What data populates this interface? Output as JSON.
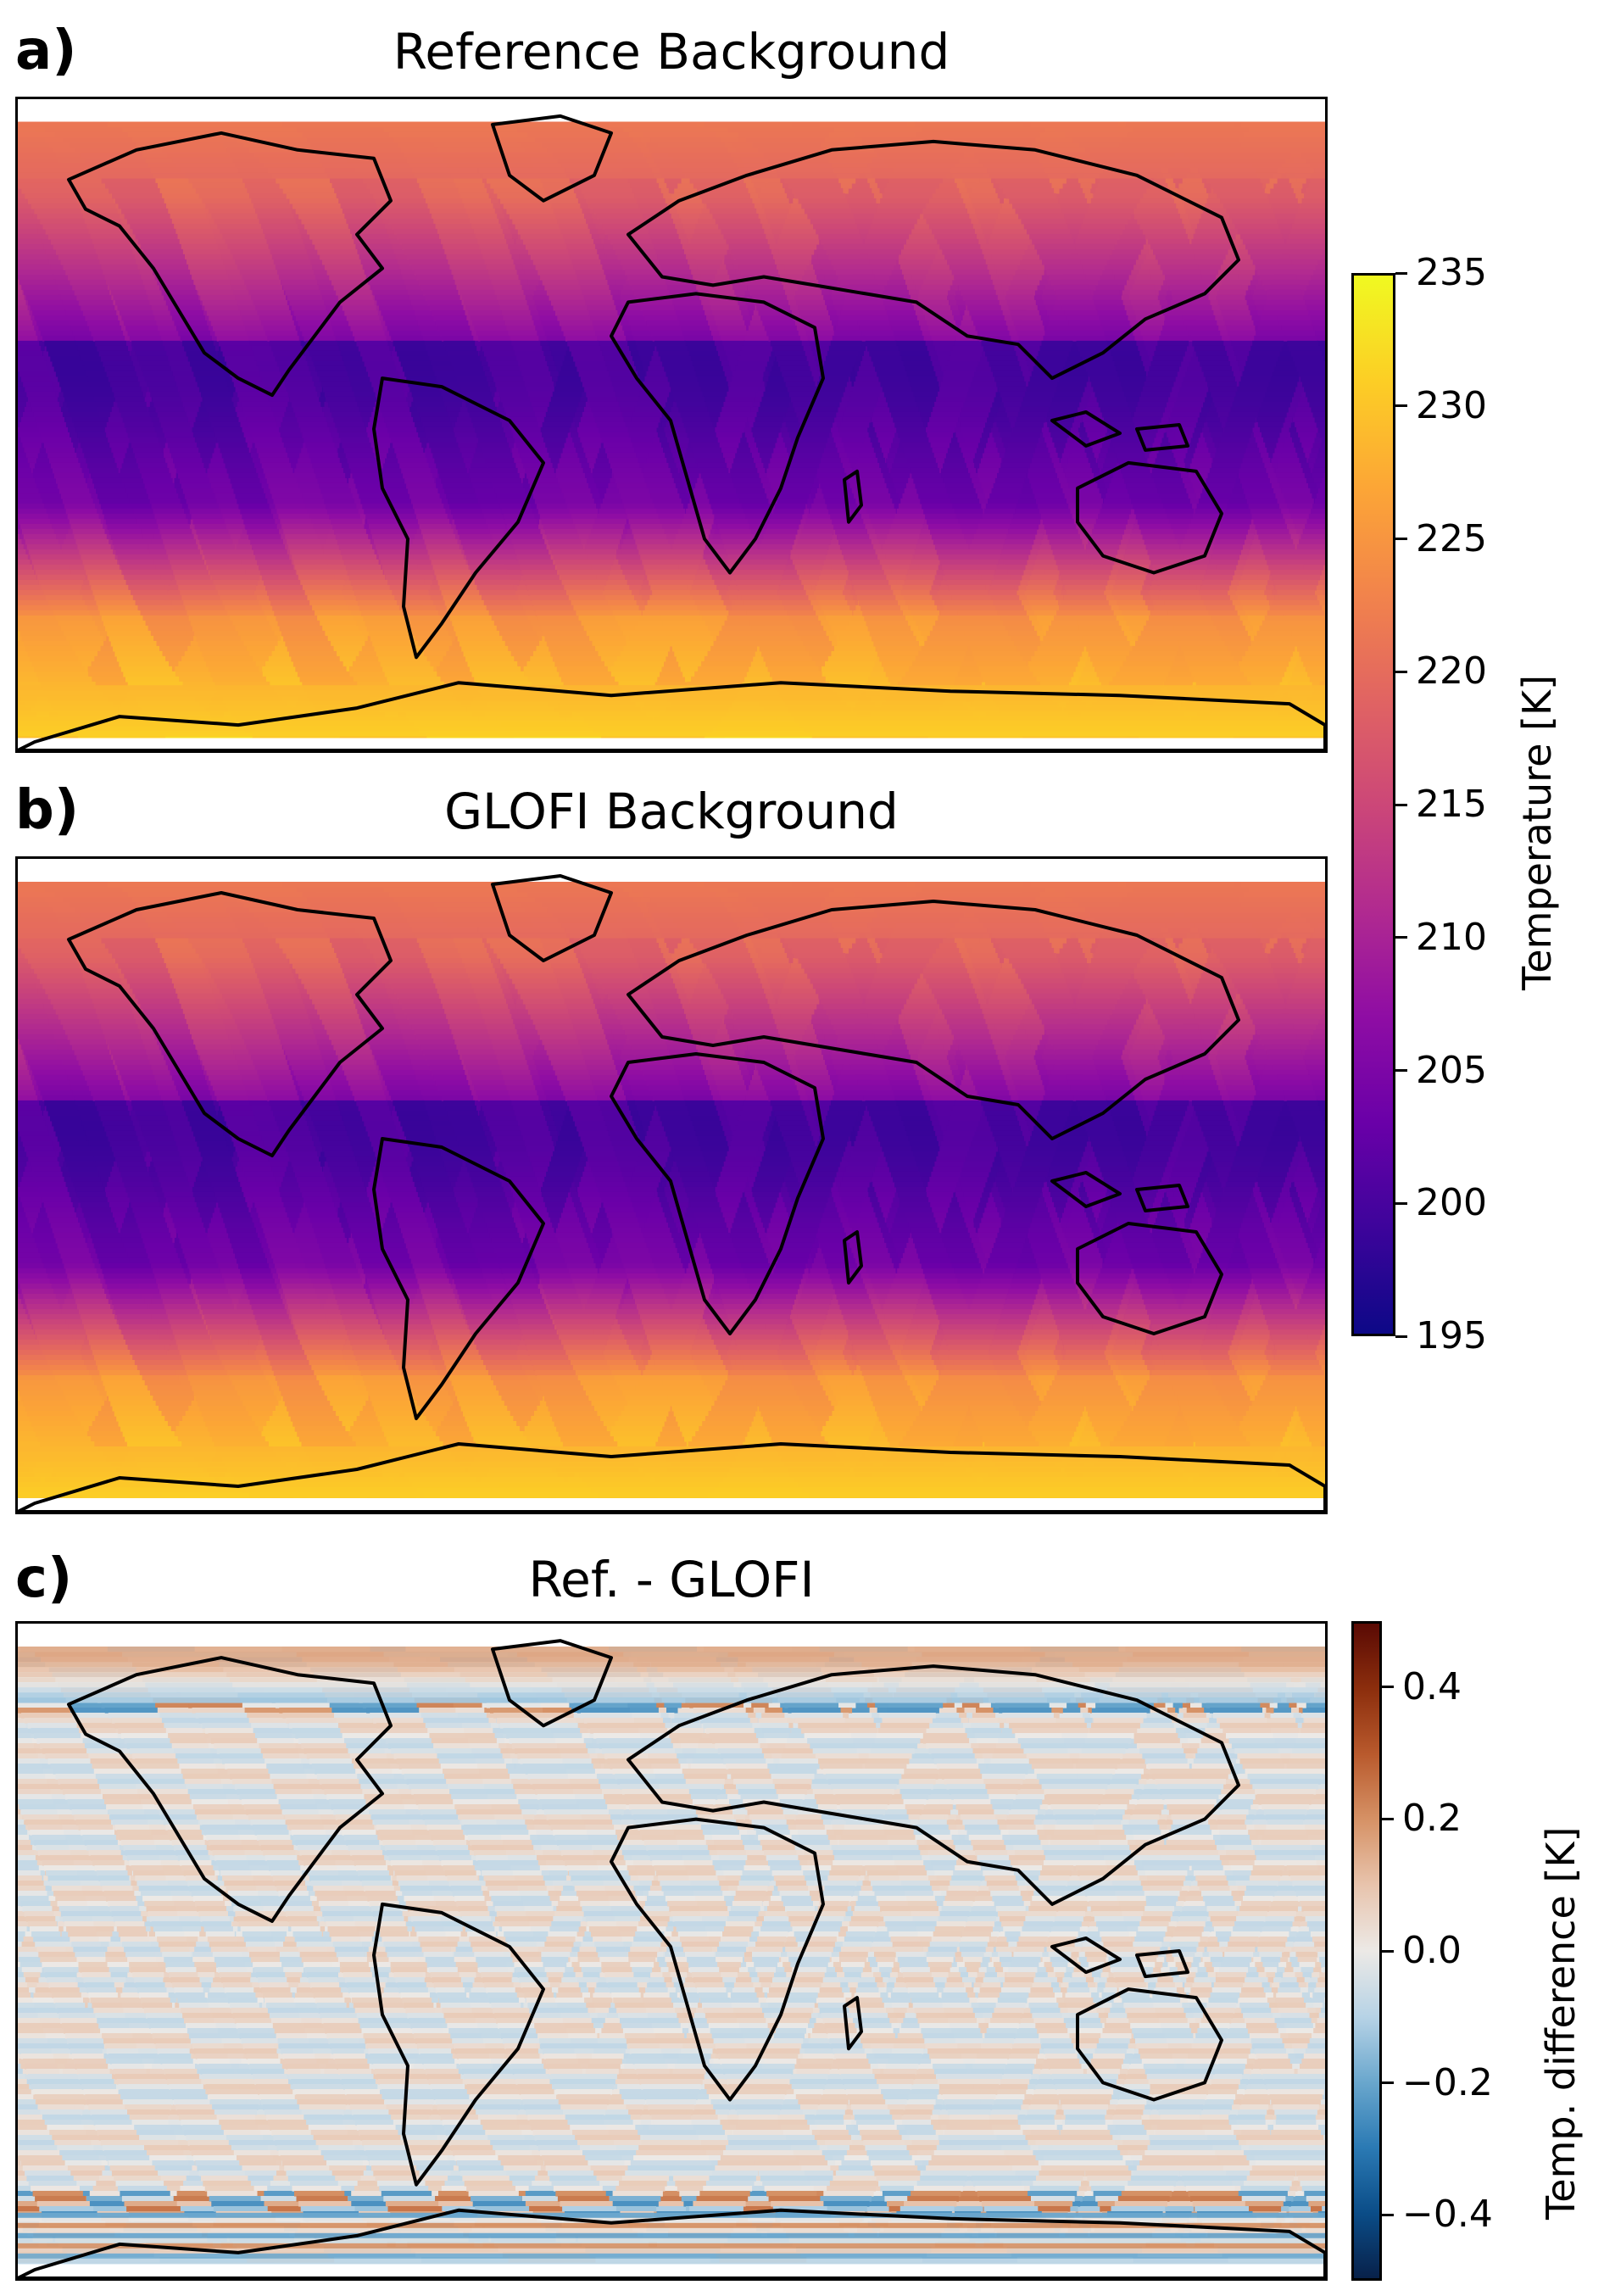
{
  "figure": {
    "panels": [
      {
        "letter": "a)",
        "title": "Reference Background"
      },
      {
        "letter": "b)",
        "title": "GLOFI Background"
      },
      {
        "letter": "c)",
        "title": "Ref. - GLOFI"
      }
    ],
    "colorbar_temperature": {
      "label": "Temperature [K]",
      "ticks": [
        "235",
        "230",
        "225",
        "220",
        "215",
        "210",
        "205",
        "200",
        "195"
      ],
      "range": [
        195,
        235
      ],
      "colormap": "plasma",
      "colors": [
        "#0d0887",
        "#3d049b",
        "#6a00a8",
        "#8f0da4",
        "#b12a90",
        "#cc4778",
        "#e16462",
        "#f2844b",
        "#fca636",
        "#fcce25",
        "#f0f921"
      ]
    },
    "colorbar_difference": {
      "label": "Temp. difference [K]",
      "ticks": [
        "0.4",
        "0.2",
        "0.0",
        "−0.2",
        "−0.4"
      ],
      "range": [
        -0.5,
        0.5
      ],
      "colormap": "RdBu_r",
      "colors": [
        "#08214a",
        "#0b4d88",
        "#2b7ab4",
        "#6aa7cd",
        "#b7d3e6",
        "#ece9e6",
        "#e8c4ad",
        "#d69266",
        "#b95a2d",
        "#8c2e0d",
        "#5a0a04"
      ]
    }
  },
  "chart_data": [
    {
      "type": "heatmap",
      "title": "Reference Background",
      "panel": "a)",
      "projection": "plate carree (global map with coastlines)",
      "description_of_field": "Temperature along crossing satellite orbit tracks; ~195-210 K in tropics, ~215-225 K at high northern latitudes, ~225-232 K near Antarctica",
      "colorbar": "colorbar_temperature"
    },
    {
      "type": "heatmap",
      "title": "GLOFI Background",
      "panel": "b)",
      "projection": "plate carree (global map with coastlines)",
      "colorbar": "colorbar_temperature"
    },
    {
      "type": "heatmap",
      "title": "Ref. - GLOFI",
      "panel": "c)",
      "projection": "plate carree (global map with coastlines)",
      "colorbar": "colorbar_difference"
    }
  ]
}
